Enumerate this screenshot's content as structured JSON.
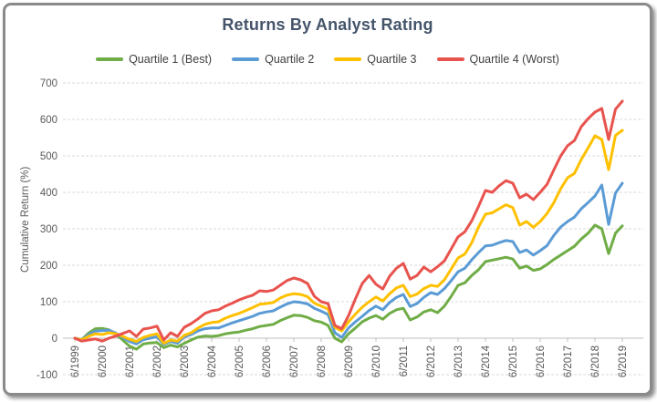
{
  "window": {
    "background": "#ffffff",
    "border_color": "#8a8a8a"
  },
  "chart_data": {
    "type": "line",
    "title": "Returns By Analyst Rating",
    "title_color": "#44546A",
    "xlabel": "",
    "ylabel": "Cumulative Return (%)",
    "ylim": [
      -100,
      700
    ],
    "ytick_step": 100,
    "grid": "horizontal-dashed",
    "legend_position": "top-center",
    "x_unit": "quarterly",
    "points_per_tick": 4,
    "x_tick_labels": [
      "6/1999",
      "6/2000",
      "6/2001",
      "6/2002",
      "6/2003",
      "6/2004",
      "6/2005",
      "6/2006",
      "6/2007",
      "6/2008",
      "6/2009",
      "6/2010",
      "6/2011",
      "6/2012",
      "6/2013",
      "6/2014",
      "6/2015",
      "6/2016",
      "6/2017",
      "6/2018",
      "6/2019"
    ],
    "style": {
      "grid_color": "#D9D9D9",
      "axis_color": "#BFBFBF",
      "tick_label_color": "#595959",
      "legend_text_color": "#3F3F3F"
    },
    "series": [
      {
        "name": "Quartile 1 (Best)",
        "color": "#70AD47",
        "values": [
          0,
          -4,
          14,
          26,
          27,
          23,
          10,
          -5,
          -22,
          -30,
          -16,
          -13,
          -12,
          -26,
          -19,
          -24,
          -14,
          -5,
          3,
          6,
          5,
          7,
          12,
          15,
          17,
          22,
          26,
          32,
          35,
          38,
          48,
          56,
          63,
          62,
          57,
          48,
          44,
          35,
          0,
          -10,
          12,
          28,
          45,
          55,
          62,
          52,
          68,
          78,
          82,
          50,
          58,
          72,
          78,
          70,
          88,
          115,
          145,
          152,
          172,
          188,
          210,
          214,
          218,
          222,
          217,
          192,
          198,
          186,
          190,
          202,
          216,
          228,
          240,
          252,
          272,
          288,
          310,
          300,
          232,
          288,
          308
        ]
      },
      {
        "name": "Quartile 2",
        "color": "#5B9BD5",
        "values": [
          0,
          -5,
          10,
          19,
          21,
          22,
          14,
          2,
          -9,
          -16,
          -4,
          0,
          4,
          -17,
          -9,
          -14,
          4,
          10,
          20,
          26,
          28,
          28,
          35,
          42,
          48,
          54,
          60,
          68,
          72,
          75,
          85,
          94,
          100,
          98,
          94,
          82,
          74,
          65,
          15,
          2,
          28,
          45,
          60,
          76,
          88,
          78,
          98,
          112,
          120,
          87,
          95,
          112,
          125,
          120,
          136,
          158,
          182,
          192,
          215,
          235,
          253,
          255,
          262,
          268,
          265,
          235,
          242,
          228,
          240,
          254,
          282,
          305,
          320,
          332,
          355,
          372,
          390,
          420,
          312,
          398,
          425
        ]
      },
      {
        "name": "Quartile 3",
        "color": "#FFC000",
        "values": [
          0,
          -5,
          5,
          12,
          10,
          15,
          12,
          5,
          -3,
          -9,
          2,
          8,
          12,
          -14,
          -5,
          -8,
          8,
          15,
          28,
          38,
          43,
          45,
          55,
          62,
          68,
          76,
          84,
          93,
          95,
          98,
          110,
          118,
          122,
          120,
          114,
          96,
          88,
          80,
          30,
          20,
          45,
          66,
          85,
          100,
          113,
          102,
          122,
          138,
          145,
          114,
          121,
          136,
          145,
          142,
          160,
          190,
          220,
          231,
          262,
          305,
          340,
          344,
          355,
          366,
          358,
          310,
          320,
          304,
          320,
          342,
          372,
          410,
          440,
          452,
          490,
          522,
          555,
          545,
          462,
          556,
          570
        ]
      },
      {
        "name": "Quartile 4 (Worst)",
        "color": "#E8534E",
        "values": [
          0,
          -8,
          -5,
          -2,
          -8,
          0,
          6,
          13,
          20,
          5,
          25,
          28,
          33,
          -5,
          15,
          5,
          30,
          40,
          53,
          68,
          75,
          78,
          88,
          96,
          105,
          112,
          118,
          130,
          128,
          132,
          145,
          158,
          165,
          160,
          150,
          115,
          100,
          95,
          35,
          26,
          62,
          108,
          150,
          172,
          148,
          135,
          170,
          192,
          205,
          162,
          172,
          195,
          182,
          196,
          212,
          245,
          278,
          292,
          322,
          362,
          405,
          400,
          418,
          432,
          425,
          385,
          395,
          380,
          400,
          422,
          462,
          500,
          528,
          542,
          580,
          602,
          620,
          630,
          545,
          628,
          650
        ]
      }
    ]
  }
}
